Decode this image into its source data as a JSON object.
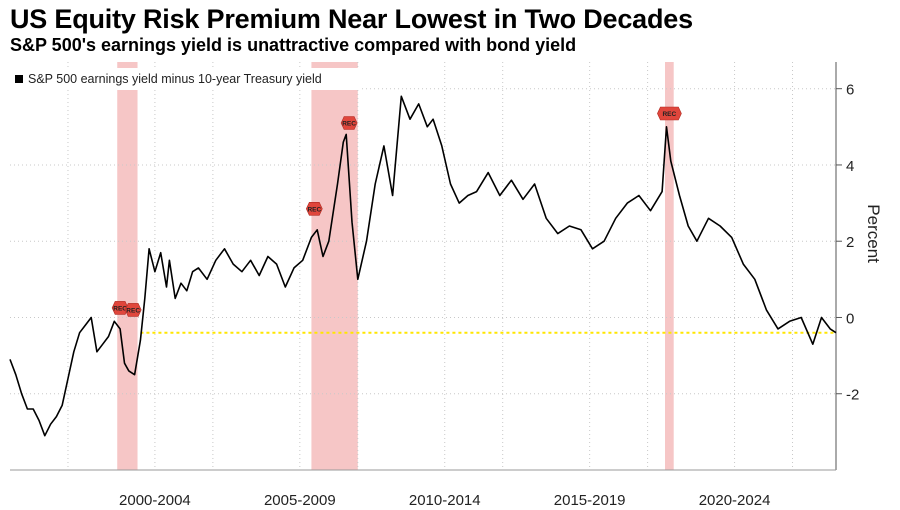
{
  "header": {
    "title": "US Equity Risk Premium Near Lowest in Two Decades",
    "subtitle": "S&P 500's earnings yield is unattractive compared with bond yield"
  },
  "colors": {
    "line": "#000000",
    "recession_fill": "#f4bcbc",
    "recession_marker": "#e0463c",
    "reference_line": "#ffe600",
    "grid": "#c8c8c8"
  },
  "chart_data": {
    "type": "line",
    "title": "US Equity Risk Premium Near Lowest in Two Decades",
    "subtitle": "S&P 500's earnings yield is unattractive compared with bond yield",
    "xlabel": "",
    "ylabel": "Percent",
    "xlim": [
      1997.5,
      2026.0
    ],
    "ylim": [
      -4,
      6.7
    ],
    "yticks": [
      -2,
      0,
      2,
      4,
      6
    ],
    "ytick_labels": [
      "-2",
      "0",
      "2",
      "4",
      "6"
    ],
    "x_tick_labels": [
      {
        "label": "2000-2004",
        "at": 2002.5
      },
      {
        "label": "2005-2009",
        "at": 2007.5
      },
      {
        "label": "2010-2014",
        "at": 2012.5
      },
      {
        "label": "2015-2019",
        "at": 2017.5
      },
      {
        "label": "2020-2024",
        "at": 2022.5
      }
    ],
    "legend": {
      "label": "S&P 500 earnings yield minus 10-year Treasury yield",
      "position": "top-left"
    },
    "reference_line": {
      "y": -0.4
    },
    "recessions": [
      {
        "start": 2001.2,
        "end": 2001.9,
        "labels": [
          "REC",
          "REC"
        ]
      },
      {
        "start": 2007.9,
        "end": 2009.5,
        "labels": [
          "REC",
          "REC"
        ]
      },
      {
        "start": 2020.1,
        "end": 2020.4,
        "labels": [
          "REC"
        ]
      }
    ],
    "series": [
      {
        "name": "S&P 500 earnings yield minus 10-year Treasury yield",
        "x": [
          1997.5,
          1997.7,
          1997.9,
          1998.1,
          1998.3,
          1998.5,
          1998.7,
          1998.9,
          1999.1,
          1999.3,
          1999.5,
          1999.7,
          1999.9,
          2000.1,
          2000.3,
          2000.5,
          2000.7,
          2000.9,
          2001.1,
          2001.3,
          2001.45,
          2001.6,
          2001.8,
          2002.0,
          2002.15,
          2002.3,
          2002.5,
          2002.7,
          2002.9,
          2003.0,
          2003.2,
          2003.4,
          2003.6,
          2003.8,
          2004.0,
          2004.3,
          2004.6,
          2004.9,
          2005.2,
          2005.5,
          2005.8,
          2006.1,
          2006.4,
          2006.7,
          2007.0,
          2007.3,
          2007.6,
          2007.9,
          2008.1,
          2008.3,
          2008.5,
          2008.8,
          2009.0,
          2009.1,
          2009.3,
          2009.5,
          2009.8,
          2010.1,
          2010.4,
          2010.7,
          2011.0,
          2011.3,
          2011.6,
          2011.9,
          2012.1,
          2012.4,
          2012.7,
          2013.0,
          2013.3,
          2013.6,
          2014.0,
          2014.4,
          2014.8,
          2015.2,
          2015.6,
          2016.0,
          2016.4,
          2016.8,
          2017.2,
          2017.6,
          2018.0,
          2018.4,
          2018.8,
          2019.2,
          2019.6,
          2020.0,
          2020.15,
          2020.3,
          2020.6,
          2020.9,
          2021.2,
          2021.6,
          2022.0,
          2022.4,
          2022.8,
          2023.2,
          2023.6,
          2024.0,
          2024.4,
          2024.8,
          2025.2,
          2025.5,
          2025.8,
          2026.0
        ],
        "values": [
          -1.1,
          -1.5,
          -2.0,
          -2.4,
          -2.4,
          -2.7,
          -3.1,
          -2.8,
          -2.6,
          -2.3,
          -1.6,
          -0.9,
          -0.4,
          -0.2,
          0.0,
          -0.9,
          -0.7,
          -0.5,
          -0.1,
          -0.3,
          -1.2,
          -1.4,
          -1.5,
          -0.6,
          0.5,
          1.8,
          1.2,
          1.7,
          0.8,
          1.5,
          0.5,
          0.9,
          0.7,
          1.2,
          1.3,
          1.0,
          1.5,
          1.8,
          1.4,
          1.2,
          1.5,
          1.1,
          1.6,
          1.4,
          0.8,
          1.3,
          1.5,
          2.1,
          2.3,
          1.6,
          2.0,
          3.5,
          4.6,
          4.8,
          2.5,
          1.0,
          2.0,
          3.5,
          4.5,
          3.2,
          5.8,
          5.2,
          5.6,
          5.0,
          5.2,
          4.5,
          3.5,
          3.0,
          3.2,
          3.3,
          3.8,
          3.2,
          3.6,
          3.1,
          3.5,
          2.6,
          2.2,
          2.4,
          2.3,
          1.8,
          2.0,
          2.6,
          3.0,
          3.2,
          2.8,
          3.3,
          5.0,
          4.1,
          3.2,
          2.4,
          2.0,
          2.6,
          2.4,
          2.1,
          1.4,
          1.0,
          0.2,
          -0.3,
          -0.1,
          0.0,
          -0.7,
          0.0,
          -0.3,
          -0.4
        ]
      }
    ]
  }
}
